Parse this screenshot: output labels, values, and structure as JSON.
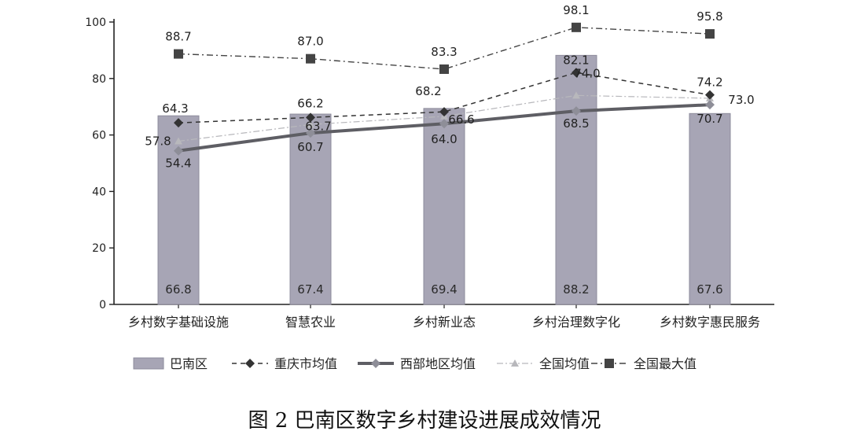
{
  "chart_data": {
    "type": "bar",
    "categories": [
      "乡村数字基础设施",
      "智慧农业",
      "乡村新业态",
      "乡村治理数字化",
      "乡村数字惠民服务"
    ],
    "ylim": [
      0,
      100
    ],
    "yticks": [
      0,
      20,
      40,
      60,
      80,
      100
    ],
    "grid": false,
    "legend_position": "bottom",
    "colors": {
      "bar": "#a7a5b5",
      "bar_edge": "#8e8c9c",
      "cq": "#333333",
      "west": "#5e5e64",
      "national": "#b8b8bc",
      "max": "#444444"
    },
    "series": [
      {
        "name": "巴南区",
        "kind": "bar",
        "values": [
          66.8,
          67.4,
          69.4,
          88.2,
          67.6
        ],
        "labels": [
          "66.8",
          "67.4",
          "69.4",
          "88.2",
          "67.6"
        ]
      },
      {
        "name": "重庆市均值",
        "kind": "line",
        "style": "dashed-diamond",
        "values": [
          64.3,
          66.2,
          68.2,
          82.1,
          74.2
        ],
        "labels": [
          "64.3",
          "66.2",
          "68.2",
          "82.1",
          "74.2"
        ]
      },
      {
        "name": "西部地区均值",
        "kind": "line",
        "style": "thick-diamond",
        "values": [
          54.4,
          60.7,
          64.0,
          68.5,
          70.7
        ],
        "labels": [
          "54.4",
          "60.7",
          "64.0",
          "68.5",
          "70.7"
        ]
      },
      {
        "name": "全国均值",
        "kind": "line",
        "style": "light-triangle",
        "values": [
          57.8,
          63.7,
          66.6,
          74.0,
          73.0
        ],
        "labels": [
          "57.8",
          "63.7",
          "66.6",
          "74.0",
          "73.0"
        ]
      },
      {
        "name": "全国最大值",
        "kind": "line",
        "style": "dashdot-square",
        "values": [
          88.7,
          87.0,
          83.3,
          98.1,
          95.8
        ],
        "labels": [
          "88.7",
          "87.0",
          "83.3",
          "98.1",
          "95.8"
        ]
      }
    ]
  },
  "caption": "图 2  巴南区数字乡村建设进展成效情况"
}
